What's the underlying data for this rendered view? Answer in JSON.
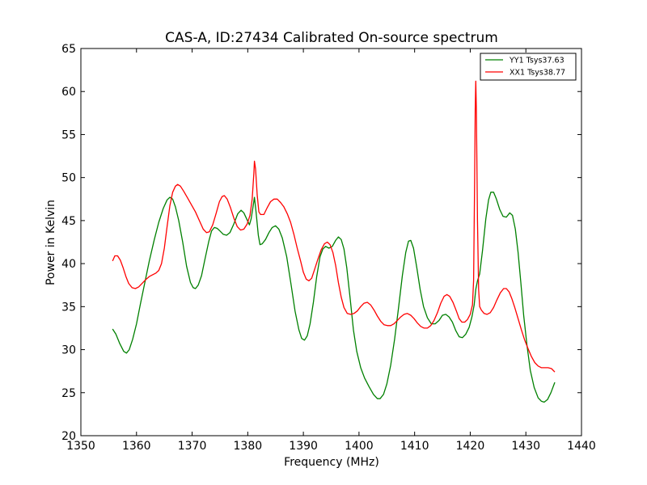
{
  "chart_data": {
    "type": "line",
    "title": "CAS-A, ID:27434 Calibrated On-source spectrum",
    "xlabel": "Frequency (MHz)",
    "ylabel": "Power in Kelvin",
    "xlim": [
      1350,
      1440
    ],
    "ylim": [
      20,
      65
    ],
    "xticks": [
      "1350",
      "1360",
      "1370",
      "1380",
      "1390",
      "1400",
      "1410",
      "1420",
      "1430",
      "1440"
    ],
    "yticks": [
      "20",
      "25",
      "30",
      "35",
      "40",
      "45",
      "50",
      "55",
      "60",
      "65"
    ],
    "grid": false,
    "legend_position": "top-right",
    "series": [
      {
        "name": "YY1 Tsys37.63",
        "color": "#008000",
        "points": [
          [
            1355.7,
            32.4
          ],
          [
            1356.3,
            31.8
          ],
          [
            1357.0,
            30.7
          ],
          [
            1357.7,
            29.8
          ],
          [
            1358.2,
            29.6
          ],
          [
            1358.7,
            30.0
          ],
          [
            1359.3,
            31.2
          ],
          [
            1360.0,
            33.0
          ],
          [
            1360.7,
            35.3
          ],
          [
            1361.5,
            37.8
          ],
          [
            1362.3,
            40.3
          ],
          [
            1363.2,
            42.8
          ],
          [
            1364.0,
            44.8
          ],
          [
            1364.8,
            46.4
          ],
          [
            1365.5,
            47.4
          ],
          [
            1366.0,
            47.7
          ],
          [
            1366.5,
            47.5
          ],
          [
            1367.0,
            46.6
          ],
          [
            1367.6,
            45.0
          ],
          [
            1368.3,
            42.5
          ],
          [
            1369.0,
            39.7
          ],
          [
            1369.7,
            37.8
          ],
          [
            1370.2,
            37.2
          ],
          [
            1370.6,
            37.1
          ],
          [
            1371.1,
            37.5
          ],
          [
            1371.7,
            38.6
          ],
          [
            1372.3,
            40.5
          ],
          [
            1373.0,
            42.6
          ],
          [
            1373.5,
            43.8
          ],
          [
            1374.0,
            44.2
          ],
          [
            1374.5,
            44.1
          ],
          [
            1375.0,
            43.8
          ],
          [
            1375.6,
            43.4
          ],
          [
            1376.2,
            43.3
          ],
          [
            1376.8,
            43.6
          ],
          [
            1377.5,
            44.6
          ],
          [
            1378.2,
            45.8
          ],
          [
            1378.8,
            46.2
          ],
          [
            1379.3,
            45.9
          ],
          [
            1379.8,
            45.2
          ],
          [
            1380.3,
            44.5
          ],
          [
            1380.6,
            45.2
          ],
          [
            1381.0,
            46.8
          ],
          [
            1381.2,
            47.7
          ],
          [
            1381.5,
            46.0
          ],
          [
            1381.9,
            43.3
          ],
          [
            1382.2,
            42.2
          ],
          [
            1382.6,
            42.3
          ],
          [
            1383.2,
            42.8
          ],
          [
            1383.8,
            43.6
          ],
          [
            1384.4,
            44.2
          ],
          [
            1385.0,
            44.4
          ],
          [
            1385.6,
            44.0
          ],
          [
            1386.2,
            43.0
          ],
          [
            1387.0,
            40.8
          ],
          [
            1387.8,
            37.5
          ],
          [
            1388.5,
            34.5
          ],
          [
            1389.2,
            32.3
          ],
          [
            1389.7,
            31.3
          ],
          [
            1390.2,
            31.1
          ],
          [
            1390.7,
            31.6
          ],
          [
            1391.2,
            33.0
          ],
          [
            1391.8,
            35.5
          ],
          [
            1392.4,
            38.5
          ],
          [
            1393.0,
            40.8
          ],
          [
            1393.5,
            41.7
          ],
          [
            1394.0,
            42.0
          ],
          [
            1394.6,
            41.8
          ],
          [
            1395.2,
            42.0
          ],
          [
            1395.8,
            42.7
          ],
          [
            1396.3,
            43.1
          ],
          [
            1396.8,
            42.8
          ],
          [
            1397.3,
            41.7
          ],
          [
            1397.8,
            39.5
          ],
          [
            1398.4,
            36.0
          ],
          [
            1399.0,
            32.3
          ],
          [
            1399.6,
            29.8
          ],
          [
            1400.3,
            27.9
          ],
          [
            1401.0,
            26.7
          ],
          [
            1401.8,
            25.7
          ],
          [
            1402.6,
            24.8
          ],
          [
            1403.3,
            24.3
          ],
          [
            1403.8,
            24.3
          ],
          [
            1404.4,
            24.8
          ],
          [
            1405.0,
            26.0
          ],
          [
            1405.7,
            28.2
          ],
          [
            1406.4,
            31.2
          ],
          [
            1407.1,
            34.8
          ],
          [
            1407.8,
            38.6
          ],
          [
            1408.4,
            41.3
          ],
          [
            1408.9,
            42.6
          ],
          [
            1409.3,
            42.7
          ],
          [
            1409.8,
            41.8
          ],
          [
            1410.4,
            39.5
          ],
          [
            1411.0,
            37.0
          ],
          [
            1411.6,
            35.0
          ],
          [
            1412.3,
            33.7
          ],
          [
            1413.0,
            33.0
          ],
          [
            1413.7,
            33.0
          ],
          [
            1414.4,
            33.4
          ],
          [
            1415.0,
            34.0
          ],
          [
            1415.6,
            34.1
          ],
          [
            1416.2,
            33.8
          ],
          [
            1416.8,
            33.2
          ],
          [
            1417.4,
            32.2
          ],
          [
            1418.0,
            31.5
          ],
          [
            1418.6,
            31.4
          ],
          [
            1419.2,
            31.8
          ],
          [
            1419.8,
            32.6
          ],
          [
            1420.3,
            33.8
          ],
          [
            1420.7,
            35.2
          ],
          [
            1421.0,
            37.0
          ],
          [
            1421.3,
            38.0
          ],
          [
            1421.7,
            38.8
          ],
          [
            1422.2,
            41.5
          ],
          [
            1422.8,
            45.2
          ],
          [
            1423.3,
            47.4
          ],
          [
            1423.7,
            48.3
          ],
          [
            1424.2,
            48.3
          ],
          [
            1424.7,
            47.5
          ],
          [
            1425.3,
            46.3
          ],
          [
            1425.9,
            45.5
          ],
          [
            1426.5,
            45.4
          ],
          [
            1427.1,
            45.9
          ],
          [
            1427.6,
            45.6
          ],
          [
            1428.1,
            44.0
          ],
          [
            1428.6,
            41.3
          ],
          [
            1429.1,
            37.8
          ],
          [
            1429.6,
            34.0
          ],
          [
            1430.2,
            30.5
          ],
          [
            1430.8,
            27.6
          ],
          [
            1431.5,
            25.6
          ],
          [
            1432.2,
            24.4
          ],
          [
            1432.8,
            24.0
          ],
          [
            1433.3,
            23.9
          ],
          [
            1433.9,
            24.2
          ],
          [
            1434.5,
            25.0
          ],
          [
            1435.2,
            26.2
          ]
        ]
      },
      {
        "name": "XX1 Tsys38.77",
        "color": "#ff0000",
        "points": [
          [
            1355.7,
            40.3
          ],
          [
            1356.1,
            40.9
          ],
          [
            1356.6,
            40.9
          ],
          [
            1357.1,
            40.4
          ],
          [
            1357.6,
            39.5
          ],
          [
            1358.1,
            38.5
          ],
          [
            1358.6,
            37.7
          ],
          [
            1359.2,
            37.2
          ],
          [
            1359.8,
            37.1
          ],
          [
            1360.4,
            37.3
          ],
          [
            1361.0,
            37.7
          ],
          [
            1361.6,
            38.1
          ],
          [
            1362.3,
            38.5
          ],
          [
            1362.9,
            38.7
          ],
          [
            1363.5,
            38.9
          ],
          [
            1364.0,
            39.2
          ],
          [
            1364.5,
            40.0
          ],
          [
            1365.0,
            41.8
          ],
          [
            1365.5,
            44.3
          ],
          [
            1366.0,
            46.7
          ],
          [
            1366.5,
            48.3
          ],
          [
            1367.0,
            49.0
          ],
          [
            1367.4,
            49.2
          ],
          [
            1367.9,
            49.0
          ],
          [
            1368.5,
            48.4
          ],
          [
            1369.2,
            47.6
          ],
          [
            1369.9,
            46.8
          ],
          [
            1370.6,
            46.0
          ],
          [
            1371.3,
            45.0
          ],
          [
            1372.0,
            44.0
          ],
          [
            1372.6,
            43.6
          ],
          [
            1373.1,
            43.7
          ],
          [
            1373.7,
            44.5
          ],
          [
            1374.3,
            45.8
          ],
          [
            1374.9,
            47.2
          ],
          [
            1375.4,
            47.8
          ],
          [
            1375.8,
            47.9
          ],
          [
            1376.3,
            47.5
          ],
          [
            1376.9,
            46.5
          ],
          [
            1377.5,
            45.3
          ],
          [
            1378.1,
            44.3
          ],
          [
            1378.7,
            43.9
          ],
          [
            1379.3,
            44.0
          ],
          [
            1379.9,
            44.6
          ],
          [
            1380.4,
            45.6
          ],
          [
            1380.8,
            47.5
          ],
          [
            1381.1,
            50.5
          ],
          [
            1381.2,
            51.9
          ],
          [
            1381.4,
            51.0
          ],
          [
            1381.7,
            48.0
          ],
          [
            1382.0,
            46.0
          ],
          [
            1382.3,
            45.7
          ],
          [
            1382.9,
            45.7
          ],
          [
            1383.5,
            46.5
          ],
          [
            1384.1,
            47.2
          ],
          [
            1384.7,
            47.5
          ],
          [
            1385.3,
            47.5
          ],
          [
            1385.9,
            47.1
          ],
          [
            1386.5,
            46.6
          ],
          [
            1387.1,
            45.8
          ],
          [
            1387.7,
            44.8
          ],
          [
            1388.3,
            43.4
          ],
          [
            1388.9,
            41.8
          ],
          [
            1389.5,
            40.3
          ],
          [
            1390.0,
            39.0
          ],
          [
            1390.5,
            38.2
          ],
          [
            1391.0,
            38.0
          ],
          [
            1391.5,
            38.3
          ],
          [
            1392.0,
            39.3
          ],
          [
            1392.6,
            40.5
          ],
          [
            1393.2,
            41.6
          ],
          [
            1393.8,
            42.3
          ],
          [
            1394.3,
            42.5
          ],
          [
            1394.8,
            42.2
          ],
          [
            1395.3,
            41.3
          ],
          [
            1395.8,
            39.8
          ],
          [
            1396.3,
            37.8
          ],
          [
            1396.8,
            36.1
          ],
          [
            1397.3,
            34.9
          ],
          [
            1397.9,
            34.2
          ],
          [
            1398.5,
            34.1
          ],
          [
            1399.1,
            34.2
          ],
          [
            1399.7,
            34.5
          ],
          [
            1400.3,
            35.0
          ],
          [
            1400.9,
            35.4
          ],
          [
            1401.5,
            35.5
          ],
          [
            1402.1,
            35.2
          ],
          [
            1402.7,
            34.6
          ],
          [
            1403.3,
            33.9
          ],
          [
            1403.9,
            33.3
          ],
          [
            1404.5,
            32.9
          ],
          [
            1405.1,
            32.8
          ],
          [
            1405.7,
            32.8
          ],
          [
            1406.3,
            33.0
          ],
          [
            1406.9,
            33.4
          ],
          [
            1407.5,
            33.8
          ],
          [
            1408.1,
            34.1
          ],
          [
            1408.7,
            34.2
          ],
          [
            1409.3,
            34.0
          ],
          [
            1409.9,
            33.6
          ],
          [
            1410.5,
            33.1
          ],
          [
            1411.1,
            32.7
          ],
          [
            1411.7,
            32.5
          ],
          [
            1412.3,
            32.5
          ],
          [
            1412.9,
            32.8
          ],
          [
            1413.5,
            33.4
          ],
          [
            1414.1,
            34.3
          ],
          [
            1414.7,
            35.4
          ],
          [
            1415.3,
            36.2
          ],
          [
            1415.8,
            36.4
          ],
          [
            1416.3,
            36.2
          ],
          [
            1416.9,
            35.5
          ],
          [
            1417.5,
            34.5
          ],
          [
            1418.0,
            33.6
          ],
          [
            1418.5,
            33.2
          ],
          [
            1419.0,
            33.2
          ],
          [
            1419.5,
            33.5
          ],
          [
            1420.0,
            34.1
          ],
          [
            1420.4,
            35.2
          ],
          [
            1420.6,
            38.0
          ],
          [
            1420.8,
            50.0
          ],
          [
            1420.9,
            58.0
          ],
          [
            1421.0,
            61.2
          ],
          [
            1421.1,
            58.0
          ],
          [
            1421.3,
            45.0
          ],
          [
            1421.5,
            37.0
          ],
          [
            1421.7,
            35.0
          ],
          [
            1422.0,
            34.6
          ],
          [
            1422.5,
            34.2
          ],
          [
            1423.0,
            34.1
          ],
          [
            1423.6,
            34.3
          ],
          [
            1424.2,
            34.9
          ],
          [
            1424.8,
            35.8
          ],
          [
            1425.4,
            36.6
          ],
          [
            1426.0,
            37.1
          ],
          [
            1426.5,
            37.1
          ],
          [
            1427.0,
            36.7
          ],
          [
            1427.5,
            35.9
          ],
          [
            1428.0,
            34.9
          ],
          [
            1428.6,
            33.6
          ],
          [
            1429.2,
            32.3
          ],
          [
            1429.8,
            31.1
          ],
          [
            1430.4,
            30.1
          ],
          [
            1431.0,
            29.2
          ],
          [
            1431.6,
            28.5
          ],
          [
            1432.2,
            28.1
          ],
          [
            1432.8,
            27.9
          ],
          [
            1433.4,
            27.9
          ],
          [
            1434.0,
            27.9
          ],
          [
            1434.6,
            27.8
          ],
          [
            1435.2,
            27.4
          ]
        ]
      }
    ]
  }
}
